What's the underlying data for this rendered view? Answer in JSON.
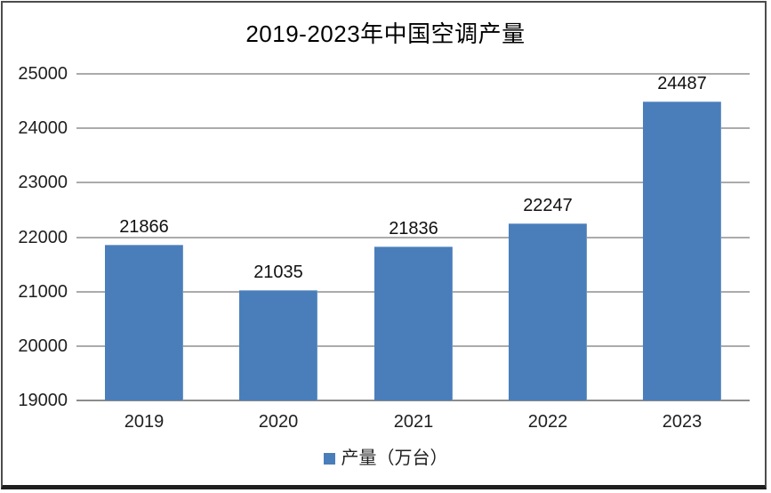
{
  "chart_data": {
    "type": "bar",
    "title": "2019-2023年中国空调产量",
    "categories": [
      "2019",
      "2020",
      "2021",
      "2022",
      "2023"
    ],
    "series": [
      {
        "name": "产量（万台）",
        "values": [
          21866,
          21035,
          21836,
          22247,
          24487
        ]
      }
    ],
    "data_labels": [
      21866,
      21035,
      21836,
      22247,
      24487
    ],
    "ylim": [
      19000,
      25000
    ],
    "yticks": [
      19000,
      20000,
      21000,
      22000,
      23000,
      24000,
      25000
    ],
    "xlabel": "",
    "ylabel": "",
    "grid": "horizontal",
    "legend_position": "bottom",
    "colors": {
      "bar": "#4A7EBB",
      "gridline": "#ABABAB",
      "axis_line": "#8C8C8C",
      "tick_text": "#1F1F1F",
      "value_label_text": "#111111",
      "title_text": "#000000",
      "background": "#FFFFFF",
      "frame_border": "#4D4D4D",
      "frame_bottom_border": "#1F1F1F"
    }
  },
  "legend": {
    "label": "产量（万台）"
  }
}
